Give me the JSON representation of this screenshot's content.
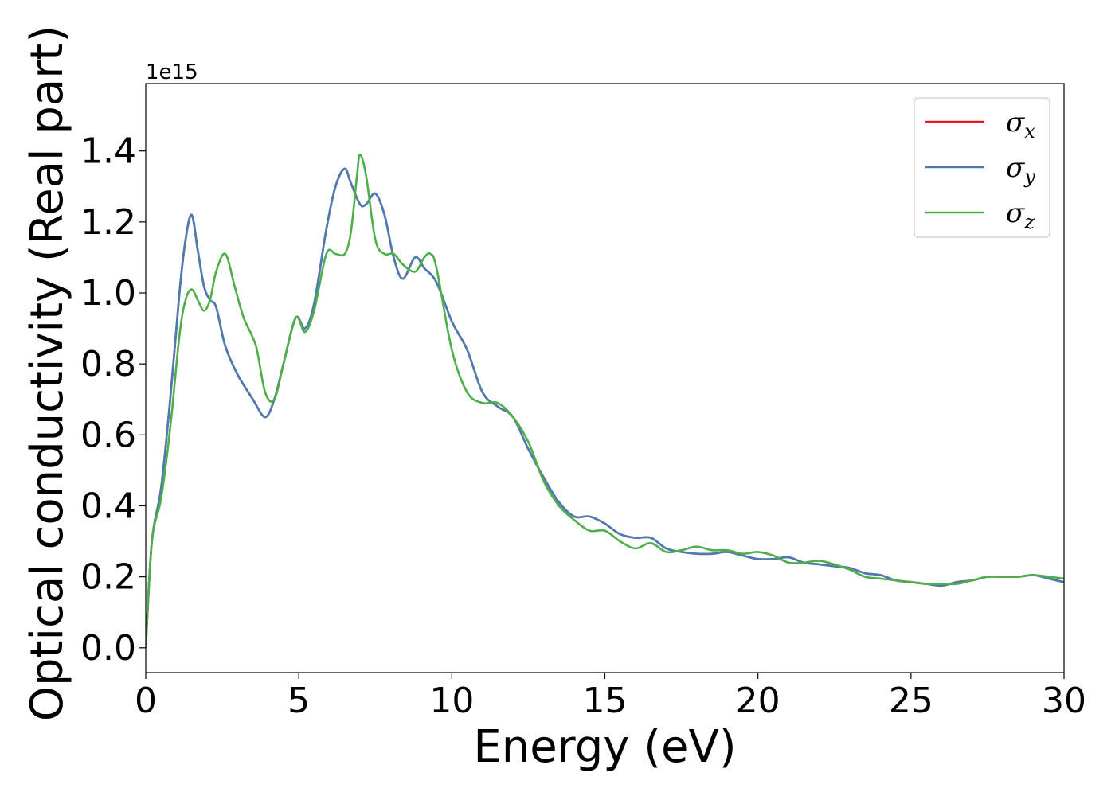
{
  "chart_data": {
    "type": "line",
    "title": "",
    "xlabel": "Energy (eV)",
    "ylabel": "Optical conductivity (Real part)",
    "y_offset_text": "1e15",
    "xlim": [
      0,
      30
    ],
    "ylim": [
      -0.07,
      1.59
    ],
    "xticks": [
      0,
      5,
      10,
      15,
      20,
      25,
      30
    ],
    "xtick_labels": [
      "0",
      "5",
      "10",
      "15",
      "20",
      "25",
      "30"
    ],
    "yticks": [
      0.0,
      0.2,
      0.4,
      0.6,
      0.8,
      1.0,
      1.2,
      1.4
    ],
    "ytick_labels": [
      "0.0",
      "0.2",
      "0.4",
      "0.6",
      "0.8",
      "1.0",
      "1.2",
      "1.4"
    ],
    "grid": false,
    "legend_position": "top-right",
    "series": [
      {
        "name": "σx",
        "legend_symbol": "σ",
        "legend_subscript": "x",
        "color": "#e41a1c",
        "x": [
          0,
          0.2,
          0.5,
          0.8,
          1.1,
          1.3,
          1.5,
          1.7,
          1.9,
          2.1,
          2.3,
          2.6,
          3.0,
          3.5,
          3.9,
          4.2,
          4.5,
          4.9,
          5.2,
          5.5,
          5.9,
          6.2,
          6.5,
          6.7,
          7.0,
          7.2,
          7.5,
          7.8,
          8.1,
          8.4,
          8.8,
          9.1,
          9.5,
          10.0,
          10.5,
          11.0,
          11.5,
          12.0,
          12.5,
          13.0,
          13.5,
          14.0,
          14.5,
          15.0,
          15.5,
          16.0,
          16.5,
          17.0,
          17.5,
          18.0,
          18.5,
          19.0,
          19.5,
          20.0,
          20.5,
          21.0,
          21.5,
          22.0,
          22.5,
          23.0,
          23.5,
          24.0,
          24.5,
          25.0,
          25.5,
          26.0,
          26.5,
          27.0,
          27.5,
          28.0,
          28.5,
          29.0,
          29.5,
          30.0
        ],
        "y": [
          0.0,
          0.3,
          0.45,
          0.7,
          1.0,
          1.15,
          1.22,
          1.12,
          1.02,
          0.98,
          0.96,
          0.85,
          0.77,
          0.7,
          0.65,
          0.7,
          0.8,
          0.93,
          0.9,
          0.97,
          1.18,
          1.3,
          1.35,
          1.31,
          1.25,
          1.25,
          1.28,
          1.22,
          1.1,
          1.04,
          1.1,
          1.07,
          1.03,
          0.92,
          0.84,
          0.72,
          0.68,
          0.65,
          0.56,
          0.48,
          0.41,
          0.37,
          0.37,
          0.35,
          0.32,
          0.31,
          0.31,
          0.28,
          0.27,
          0.265,
          0.265,
          0.27,
          0.26,
          0.25,
          0.25,
          0.255,
          0.24,
          0.235,
          0.23,
          0.225,
          0.21,
          0.205,
          0.19,
          0.185,
          0.18,
          0.175,
          0.185,
          0.19,
          0.2,
          0.2,
          0.2,
          0.205,
          0.195,
          0.185
        ]
      },
      {
        "name": "σy",
        "legend_symbol": "σ",
        "legend_subscript": "y",
        "color": "#4a7bb5",
        "x": [
          0,
          0.2,
          0.5,
          0.8,
          1.1,
          1.3,
          1.5,
          1.7,
          1.9,
          2.1,
          2.3,
          2.6,
          3.0,
          3.5,
          3.9,
          4.2,
          4.5,
          4.9,
          5.2,
          5.5,
          5.9,
          6.2,
          6.5,
          6.7,
          7.0,
          7.2,
          7.5,
          7.8,
          8.1,
          8.4,
          8.8,
          9.1,
          9.5,
          10.0,
          10.5,
          11.0,
          11.5,
          12.0,
          12.5,
          13.0,
          13.5,
          14.0,
          14.5,
          15.0,
          15.5,
          16.0,
          16.5,
          17.0,
          17.5,
          18.0,
          18.5,
          19.0,
          19.5,
          20.0,
          20.5,
          21.0,
          21.5,
          22.0,
          22.5,
          23.0,
          23.5,
          24.0,
          24.5,
          25.0,
          25.5,
          26.0,
          26.5,
          27.0,
          27.5,
          28.0,
          28.5,
          29.0,
          29.5,
          30.0
        ],
        "y": [
          0.0,
          0.3,
          0.45,
          0.7,
          1.0,
          1.15,
          1.22,
          1.12,
          1.02,
          0.98,
          0.96,
          0.85,
          0.77,
          0.7,
          0.65,
          0.7,
          0.8,
          0.93,
          0.9,
          0.97,
          1.18,
          1.3,
          1.35,
          1.31,
          1.25,
          1.25,
          1.28,
          1.22,
          1.1,
          1.04,
          1.1,
          1.07,
          1.03,
          0.92,
          0.84,
          0.72,
          0.68,
          0.65,
          0.56,
          0.48,
          0.41,
          0.37,
          0.37,
          0.35,
          0.32,
          0.31,
          0.31,
          0.28,
          0.27,
          0.265,
          0.265,
          0.27,
          0.26,
          0.25,
          0.25,
          0.255,
          0.24,
          0.235,
          0.23,
          0.225,
          0.21,
          0.205,
          0.19,
          0.185,
          0.18,
          0.175,
          0.185,
          0.19,
          0.2,
          0.2,
          0.2,
          0.205,
          0.195,
          0.185
        ]
      },
      {
        "name": "σz",
        "legend_symbol": "σ",
        "legend_subscript": "z",
        "color": "#4daf4a",
        "x": [
          0,
          0.2,
          0.5,
          0.8,
          1.1,
          1.3,
          1.5,
          1.7,
          1.9,
          2.1,
          2.3,
          2.6,
          2.9,
          3.2,
          3.6,
          3.9,
          4.2,
          4.5,
          4.9,
          5.2,
          5.5,
          5.9,
          6.2,
          6.5,
          6.7,
          6.9,
          7.0,
          7.2,
          7.5,
          7.8,
          8.1,
          8.4,
          8.8,
          9.1,
          9.3,
          9.5,
          10.0,
          10.5,
          11.0,
          11.5,
          12.0,
          12.5,
          13.0,
          13.5,
          14.0,
          14.5,
          15.0,
          15.5,
          16.0,
          16.5,
          17.0,
          17.5,
          18.0,
          18.5,
          19.0,
          19.5,
          20.0,
          20.5,
          21.0,
          21.5,
          22.0,
          22.5,
          23.0,
          23.5,
          24.0,
          24.5,
          25.0,
          25.5,
          26.0,
          26.5,
          27.0,
          27.5,
          28.0,
          28.5,
          29.0,
          29.5,
          30.0
        ],
        "y": [
          0.0,
          0.3,
          0.42,
          0.62,
          0.88,
          0.98,
          1.01,
          0.98,
          0.95,
          0.98,
          1.06,
          1.11,
          1.02,
          0.93,
          0.85,
          0.72,
          0.7,
          0.8,
          0.93,
          0.89,
          0.95,
          1.11,
          1.11,
          1.11,
          1.17,
          1.33,
          1.39,
          1.33,
          1.15,
          1.11,
          1.11,
          1.08,
          1.06,
          1.1,
          1.11,
          1.07,
          0.84,
          0.72,
          0.69,
          0.69,
          0.65,
          0.58,
          0.47,
          0.4,
          0.36,
          0.33,
          0.33,
          0.3,
          0.28,
          0.295,
          0.27,
          0.275,
          0.285,
          0.275,
          0.275,
          0.265,
          0.27,
          0.26,
          0.24,
          0.24,
          0.245,
          0.235,
          0.22,
          0.2,
          0.195,
          0.19,
          0.185,
          0.18,
          0.18,
          0.18,
          0.19,
          0.2,
          0.2,
          0.2,
          0.205,
          0.2,
          0.195
        ]
      }
    ]
  }
}
